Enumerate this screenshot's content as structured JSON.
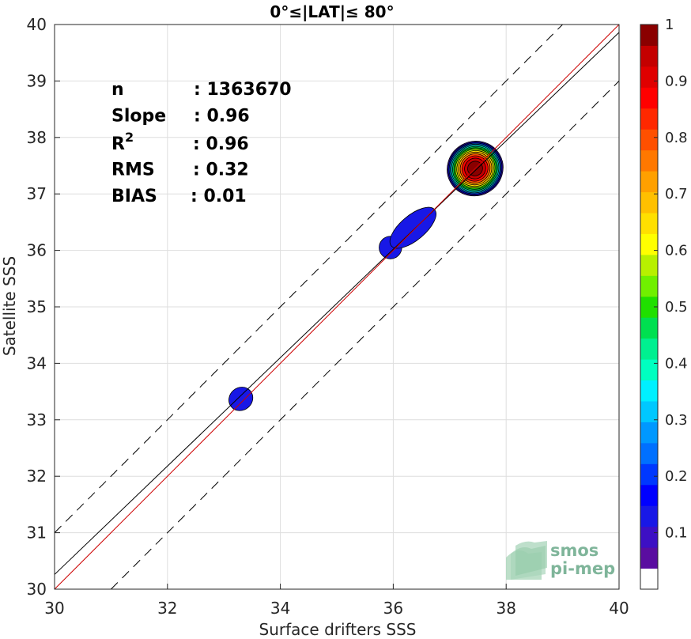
{
  "chart_data": {
    "type": "heatmap",
    "title": "0°≤|LAT|≤ 80°",
    "xlabel": "Surface drifters SSS",
    "ylabel": "Satellite SSS",
    "xlim": [
      30,
      40
    ],
    "ylim": [
      30,
      40
    ],
    "x_ticks": [
      "30",
      "32",
      "34",
      "36",
      "38",
      "40"
    ],
    "y_ticks": [
      "30",
      "31",
      "32",
      "33",
      "34",
      "35",
      "36",
      "37",
      "38",
      "39",
      "40"
    ],
    "grid": true,
    "stats": [
      {
        "label": "n",
        "value": ": 1363670"
      },
      {
        "label": "Slope",
        "value": ": 0.96"
      },
      {
        "label": "R",
        "sup": "2",
        "value": ": 0.96"
      },
      {
        "label": "RMS",
        "value": ": 0.32"
      },
      {
        "label": "BIAS",
        "value": ": 0.01"
      }
    ],
    "lines": {
      "one_to_one": {
        "color": "#cc0000",
        "slope": 1,
        "intercept": 0
      },
      "fit": {
        "color": "#000000",
        "slope": 0.96,
        "intercept": 1.46
      },
      "upper_bound": {
        "color": "#000000",
        "dash": true,
        "slope": 1,
        "intercept": 1
      },
      "lower_bound": {
        "color": "#000000",
        "dash": true,
        "slope": 1,
        "intercept": -1
      }
    },
    "density_blobs": [
      {
        "cx": 33.3,
        "cy": 33.37,
        "rx": 0.22,
        "ry": 0.2,
        "angle": 40,
        "peak": 0.1
      },
      {
        "cx": 35.95,
        "cy": 36.05,
        "rx": 0.2,
        "ry": 0.2,
        "angle": 45,
        "peak": 0.1
      },
      {
        "cx": 36.35,
        "cy": 36.4,
        "rx": 0.5,
        "ry": 0.22,
        "angle": 40,
        "peak": 0.1
      },
      {
        "cx": 37.45,
        "cy": 37.45,
        "rx": 0.5,
        "ry": 0.48,
        "angle": 30,
        "peak": 1.0
      }
    ],
    "colorbar": {
      "min": 0,
      "max": 1,
      "ticks": [
        "0.1",
        "0.2",
        "0.3",
        "0.4",
        "0.5",
        "0.6",
        "0.7",
        "0.8",
        "0.9",
        "1"
      ],
      "colors": [
        "#ffffff",
        "#5a0da0",
        "#3d10c4",
        "#1818e6",
        "#0000ff",
        "#0038ff",
        "#0070ff",
        "#0098ff",
        "#00c8ff",
        "#00f0ff",
        "#00ffc0",
        "#00f090",
        "#00e050",
        "#20e000",
        "#70f000",
        "#b8f000",
        "#ffff00",
        "#ffe000",
        "#ffc000",
        "#ffa000",
        "#ff7800",
        "#ff5000",
        "#ff2800",
        "#ff0000",
        "#e00000",
        "#c40000",
        "#8a0000"
      ]
    }
  },
  "logo": {
    "line1": "smos",
    "line2": "pi-mep"
  }
}
